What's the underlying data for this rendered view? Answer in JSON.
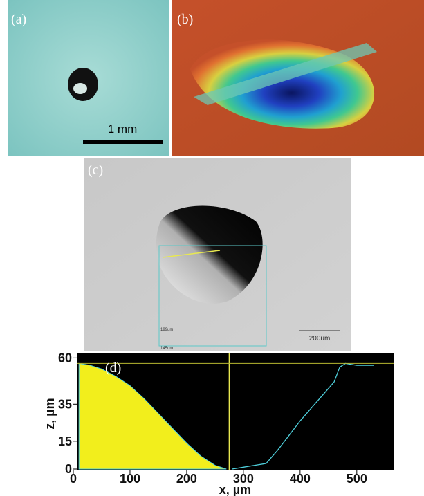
{
  "panels": {
    "a": {
      "label": "(a)",
      "scale_bar": "1 mm"
    },
    "b": {
      "label": "(b)"
    },
    "c": {
      "label": "(c)",
      "box_width": "199um",
      "box_height": "145um",
      "scale_bar": "200um"
    }
  },
  "chart_data": {
    "type": "area",
    "label": "(d)",
    "xlabel": "x, µm",
    "ylabel": "z, µm",
    "xlim": [
      0,
      560
    ],
    "ylim": [
      0,
      62
    ],
    "xticks": [
      0,
      100,
      200,
      300,
      400,
      500
    ],
    "yticks": [
      0,
      15,
      35,
      60
    ],
    "cursor": {
      "x": 275,
      "z": 57
    },
    "series": [
      {
        "kind": "fill",
        "color": "#f2ee1c",
        "x": [
          10,
          30,
          50,
          75,
          100,
          125,
          150,
          175,
          200,
          225,
          250,
          270
        ],
        "values": [
          57,
          56,
          54,
          50,
          45,
          38,
          30,
          22,
          14,
          7,
          2,
          0
        ]
      },
      {
        "kind": "line",
        "color": "#4fd0dc",
        "x": [
          280,
          300,
          320,
          340,
          360,
          380,
          400,
          420,
          440,
          460,
          470,
          480,
          500,
          530
        ],
        "values": [
          0,
          1,
          2,
          3,
          10,
          18,
          26,
          33,
          40,
          47,
          55,
          57,
          56,
          56
        ]
      }
    ]
  }
}
